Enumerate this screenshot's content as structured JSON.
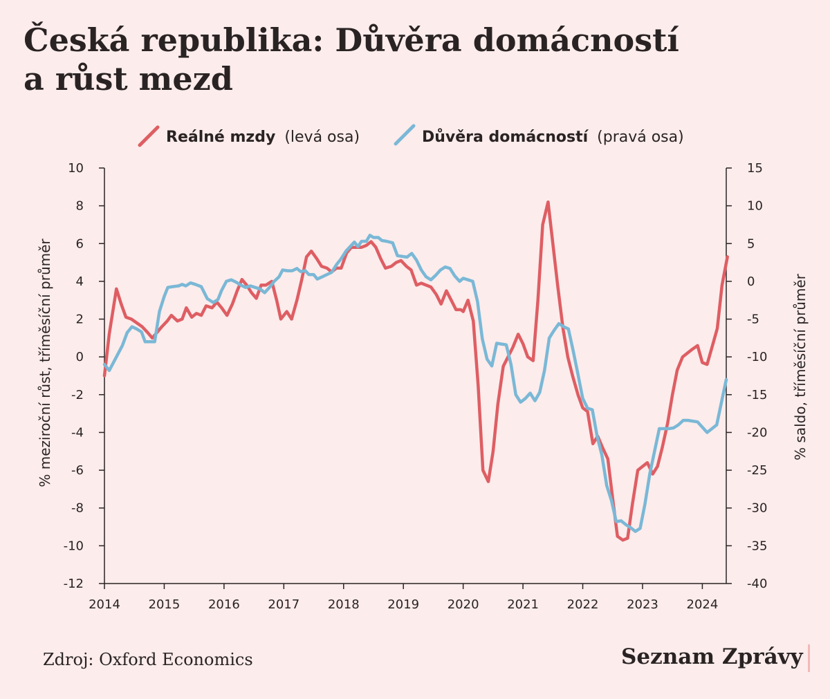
{
  "title_lines": [
    "Česká republika: Důvěra domácností",
    "a růst mezd"
  ],
  "source": "Zdroj: Oxford Economics",
  "brand": "Seznam Zprávy",
  "colors": {
    "background": "#fcecec",
    "wages": "#de5e63",
    "confidence": "#7ab8d6",
    "text": "#2a2323",
    "axis": "#2a2323"
  },
  "chart_data": {
    "type": "line",
    "x_axis": {
      "min": 2014,
      "max": 2024.4,
      "ticks": [
        "2014",
        "2015",
        "2016",
        "2017",
        "2018",
        "2019",
        "2020",
        "2021",
        "2022",
        "2023",
        "2024"
      ]
    },
    "y_left": {
      "label": "% meziroční růst, tříměsíční průměr",
      "min": -12,
      "max": 10,
      "ticks": [
        "10",
        "8",
        "6",
        "4",
        "2",
        "0",
        "-2",
        "-4",
        "-6",
        "-8",
        "-10",
        "-12"
      ]
    },
    "y_right": {
      "label": "% saldo, tříměsíční průměr",
      "min": -40,
      "max": 15,
      "ticks": [
        "15",
        "10",
        "5",
        "0",
        "-5",
        "-10",
        "-15",
        "-20",
        "-25",
        "-30",
        "-35",
        "-40"
      ]
    },
    "legend": {
      "placement": "top-center"
    },
    "series": [
      {
        "name": "Reálné mzdy",
        "axis_note": "(levá osa)",
        "axis": "left",
        "points": [
          [
            2014.0,
            -1.0
          ],
          [
            2014.08,
            1.2
          ],
          [
            2014.2,
            3.6
          ],
          [
            2014.28,
            2.8
          ],
          [
            2014.36,
            2.1
          ],
          [
            2014.45,
            2.0
          ],
          [
            2014.54,
            1.8
          ],
          [
            2014.63,
            1.6
          ],
          [
            2014.72,
            1.3
          ],
          [
            2014.8,
            1.0
          ],
          [
            2014.88,
            1.3
          ],
          [
            2014.96,
            1.6
          ],
          [
            2015.05,
            1.9
          ],
          [
            2015.12,
            2.2
          ],
          [
            2015.22,
            1.9
          ],
          [
            2015.3,
            2.0
          ],
          [
            2015.37,
            2.6
          ],
          [
            2015.46,
            2.1
          ],
          [
            2015.54,
            2.3
          ],
          [
            2015.62,
            2.2
          ],
          [
            2015.7,
            2.7
          ],
          [
            2015.8,
            2.6
          ],
          [
            2015.88,
            2.9
          ],
          [
            2015.96,
            2.6
          ],
          [
            2016.05,
            2.2
          ],
          [
            2016.14,
            2.8
          ],
          [
            2016.22,
            3.5
          ],
          [
            2016.3,
            4.1
          ],
          [
            2016.38,
            3.8
          ],
          [
            2016.46,
            3.4
          ],
          [
            2016.54,
            3.1
          ],
          [
            2016.62,
            3.8
          ],
          [
            2016.7,
            3.8
          ],
          [
            2016.8,
            4.0
          ],
          [
            2016.88,
            3.0
          ],
          [
            2016.95,
            2.0
          ],
          [
            2017.05,
            2.4
          ],
          [
            2017.13,
            2.0
          ],
          [
            2017.22,
            3.0
          ],
          [
            2017.3,
            4.1
          ],
          [
            2017.38,
            5.3
          ],
          [
            2017.46,
            5.6
          ],
          [
            2017.55,
            5.2
          ],
          [
            2017.63,
            4.8
          ],
          [
            2017.72,
            4.7
          ],
          [
            2017.8,
            4.5
          ],
          [
            2017.88,
            4.7
          ],
          [
            2017.96,
            4.7
          ],
          [
            2018.05,
            5.5
          ],
          [
            2018.13,
            5.8
          ],
          [
            2018.22,
            5.8
          ],
          [
            2018.3,
            5.8
          ],
          [
            2018.38,
            5.9
          ],
          [
            2018.46,
            6.1
          ],
          [
            2018.54,
            5.8
          ],
          [
            2018.62,
            5.2
          ],
          [
            2018.7,
            4.7
          ],
          [
            2018.8,
            4.8
          ],
          [
            2018.88,
            5.0
          ],
          [
            2018.96,
            5.1
          ],
          [
            2019.05,
            4.8
          ],
          [
            2019.13,
            4.6
          ],
          [
            2019.22,
            3.8
          ],
          [
            2019.3,
            3.9
          ],
          [
            2019.38,
            3.8
          ],
          [
            2019.46,
            3.7
          ],
          [
            2019.55,
            3.3
          ],
          [
            2019.63,
            2.8
          ],
          [
            2019.72,
            3.5
          ],
          [
            2019.8,
            3.0
          ],
          [
            2019.88,
            2.5
          ],
          [
            2019.96,
            2.5
          ],
          [
            2020.0,
            2.4
          ],
          [
            2020.08,
            3.0
          ],
          [
            2020.17,
            1.9
          ],
          [
            2020.25,
            -1.5
          ],
          [
            2020.33,
            -6.0
          ],
          [
            2020.42,
            -6.6
          ],
          [
            2020.5,
            -5.0
          ],
          [
            2020.58,
            -2.5
          ],
          [
            2020.67,
            -0.5
          ],
          [
            2020.75,
            0.0
          ],
          [
            2020.83,
            0.5
          ],
          [
            2020.92,
            1.2
          ],
          [
            2021.0,
            0.7
          ],
          [
            2021.08,
            0.0
          ],
          [
            2021.17,
            -0.2
          ],
          [
            2021.25,
            3.0
          ],
          [
            2021.33,
            7.0
          ],
          [
            2021.42,
            8.2
          ],
          [
            2021.5,
            6.0
          ],
          [
            2021.58,
            3.8
          ],
          [
            2021.67,
            1.5
          ],
          [
            2021.75,
            0.0
          ],
          [
            2021.83,
            -1.0
          ],
          [
            2021.92,
            -2.0
          ],
          [
            2022.0,
            -2.7
          ],
          [
            2022.08,
            -2.9
          ],
          [
            2022.17,
            -4.6
          ],
          [
            2022.25,
            -4.2
          ],
          [
            2022.33,
            -4.8
          ],
          [
            2022.42,
            -5.4
          ],
          [
            2022.5,
            -7.5
          ],
          [
            2022.58,
            -9.5
          ],
          [
            2022.67,
            -9.7
          ],
          [
            2022.75,
            -9.6
          ],
          [
            2022.83,
            -7.8
          ],
          [
            2022.92,
            -6.0
          ],
          [
            2023.0,
            -5.8
          ],
          [
            2023.08,
            -5.6
          ],
          [
            2023.17,
            -6.2
          ],
          [
            2023.25,
            -5.8
          ],
          [
            2023.33,
            -4.8
          ],
          [
            2023.42,
            -3.5
          ],
          [
            2023.5,
            -2.0
          ],
          [
            2023.58,
            -0.7
          ],
          [
            2023.67,
            0.0
          ],
          [
            2023.75,
            0.2
          ],
          [
            2023.83,
            0.4
          ],
          [
            2023.92,
            0.6
          ],
          [
            2024.0,
            -0.3
          ],
          [
            2024.08,
            -0.4
          ],
          [
            2024.17,
            0.6
          ],
          [
            2024.25,
            1.5
          ],
          [
            2024.33,
            3.8
          ],
          [
            2024.42,
            5.3
          ]
        ]
      },
      {
        "name": "Důvěra domácností",
        "axis_note": "(pravá osa)",
        "axis": "right",
        "points": [
          [
            2014.0,
            -11.0
          ],
          [
            2014.08,
            -11.8
          ],
          [
            2014.2,
            -10.0
          ],
          [
            2014.3,
            -8.5
          ],
          [
            2014.38,
            -6.8
          ],
          [
            2014.46,
            -6.0
          ],
          [
            2014.54,
            -6.3
          ],
          [
            2014.62,
            -6.7
          ],
          [
            2014.68,
            -8.0
          ],
          [
            2014.76,
            -8.0
          ],
          [
            2014.84,
            -8.0
          ],
          [
            2014.92,
            -4.0
          ],
          [
            2015.0,
            -2.0
          ],
          [
            2015.06,
            -0.8
          ],
          [
            2015.14,
            -0.7
          ],
          [
            2015.24,
            -0.6
          ],
          [
            2015.3,
            -0.4
          ],
          [
            2015.36,
            -0.6
          ],
          [
            2015.44,
            -0.2
          ],
          [
            2015.52,
            -0.4
          ],
          [
            2015.62,
            -0.7
          ],
          [
            2015.72,
            -2.3
          ],
          [
            2015.82,
            -2.8
          ],
          [
            2015.9,
            -2.4
          ],
          [
            2015.96,
            -1.2
          ],
          [
            2016.04,
            0.0
          ],
          [
            2016.12,
            0.2
          ],
          [
            2016.2,
            -0.1
          ],
          [
            2016.28,
            -0.5
          ],
          [
            2016.36,
            -0.8
          ],
          [
            2016.44,
            -0.6
          ],
          [
            2016.52,
            -0.8
          ],
          [
            2016.6,
            -1.0
          ],
          [
            2016.68,
            -1.5
          ],
          [
            2016.76,
            -0.8
          ],
          [
            2016.84,
            0.0
          ],
          [
            2016.92,
            0.6
          ],
          [
            2016.98,
            1.5
          ],
          [
            2017.06,
            1.4
          ],
          [
            2017.14,
            1.4
          ],
          [
            2017.22,
            1.7
          ],
          [
            2017.28,
            1.3
          ],
          [
            2017.36,
            1.4
          ],
          [
            2017.42,
            0.9
          ],
          [
            2017.5,
            0.9
          ],
          [
            2017.56,
            0.3
          ],
          [
            2017.64,
            0.6
          ],
          [
            2017.72,
            0.9
          ],
          [
            2017.8,
            1.2
          ],
          [
            2017.88,
            2.2
          ],
          [
            2017.96,
            3.0
          ],
          [
            2018.04,
            4.0
          ],
          [
            2018.1,
            4.5
          ],
          [
            2018.18,
            5.2
          ],
          [
            2018.24,
            4.6
          ],
          [
            2018.3,
            5.3
          ],
          [
            2018.38,
            5.3
          ],
          [
            2018.44,
            6.1
          ],
          [
            2018.5,
            5.8
          ],
          [
            2018.58,
            5.8
          ],
          [
            2018.64,
            5.4
          ],
          [
            2018.72,
            5.3
          ],
          [
            2018.82,
            5.1
          ],
          [
            2018.9,
            3.4
          ],
          [
            2018.98,
            3.3
          ],
          [
            2019.06,
            3.2
          ],
          [
            2019.14,
            3.7
          ],
          [
            2019.22,
            2.8
          ],
          [
            2019.3,
            1.5
          ],
          [
            2019.38,
            0.6
          ],
          [
            2019.46,
            0.2
          ],
          [
            2019.54,
            0.8
          ],
          [
            2019.62,
            1.5
          ],
          [
            2019.7,
            1.9
          ],
          [
            2019.78,
            1.7
          ],
          [
            2019.86,
            0.7
          ],
          [
            2019.94,
            0.0
          ],
          [
            2020.0,
            0.4
          ],
          [
            2020.08,
            0.2
          ],
          [
            2020.16,
            0.0
          ],
          [
            2020.24,
            -2.7
          ],
          [
            2020.32,
            -7.6
          ],
          [
            2020.4,
            -10.3
          ],
          [
            2020.48,
            -11.2
          ],
          [
            2020.56,
            -8.2
          ],
          [
            2020.64,
            -8.3
          ],
          [
            2020.72,
            -8.4
          ],
          [
            2020.8,
            -11.0
          ],
          [
            2020.88,
            -15.0
          ],
          [
            2020.96,
            -16.0
          ],
          [
            2021.04,
            -15.5
          ],
          [
            2021.12,
            -14.8
          ],
          [
            2021.2,
            -15.8
          ],
          [
            2021.28,
            -14.7
          ],
          [
            2021.36,
            -11.8
          ],
          [
            2021.44,
            -7.5
          ],
          [
            2021.52,
            -6.5
          ],
          [
            2021.6,
            -5.6
          ],
          [
            2021.68,
            -6.0
          ],
          [
            2021.76,
            -6.3
          ],
          [
            2021.84,
            -9.2
          ],
          [
            2021.92,
            -12.3
          ],
          [
            2022.0,
            -15.5
          ],
          [
            2022.08,
            -16.8
          ],
          [
            2022.16,
            -17.0
          ],
          [
            2022.24,
            -20.5
          ],
          [
            2022.32,
            -23.0
          ],
          [
            2022.4,
            -27.0
          ],
          [
            2022.48,
            -29.0
          ],
          [
            2022.56,
            -31.8
          ],
          [
            2022.64,
            -31.7
          ],
          [
            2022.72,
            -32.2
          ],
          [
            2022.8,
            -32.6
          ],
          [
            2022.88,
            -33.1
          ],
          [
            2022.96,
            -32.7
          ],
          [
            2023.04,
            -29.5
          ],
          [
            2023.12,
            -25.5
          ],
          [
            2023.2,
            -22.5
          ],
          [
            2023.28,
            -19.5
          ],
          [
            2023.36,
            -19.5
          ],
          [
            2023.44,
            -19.5
          ],
          [
            2023.52,
            -19.4
          ],
          [
            2023.6,
            -19.0
          ],
          [
            2023.68,
            -18.4
          ],
          [
            2023.76,
            -18.4
          ],
          [
            2023.84,
            -18.5
          ],
          [
            2023.92,
            -18.6
          ],
          [
            2024.0,
            -19.3
          ],
          [
            2024.08,
            -20.0
          ],
          [
            2024.16,
            -19.5
          ],
          [
            2024.24,
            -19.0
          ],
          [
            2024.32,
            -16.0
          ],
          [
            2024.4,
            -13.0
          ]
        ]
      }
    ]
  }
}
